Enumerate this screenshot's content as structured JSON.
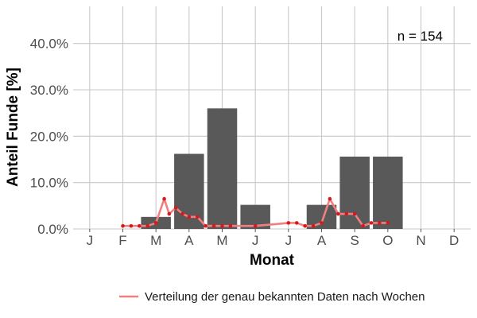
{
  "chart_data": {
    "type": "bar",
    "xlabel": "Monat",
    "ylabel": "Anteil Funde [%]",
    "categories": [
      "J",
      "F",
      "M",
      "A",
      "M",
      "J",
      "J",
      "A",
      "S",
      "O",
      "N",
      "D"
    ],
    "values": [
      0,
      0,
      2.6,
      16.2,
      26.0,
      5.2,
      0,
      5.2,
      15.6,
      15.6,
      0,
      0
    ],
    "y_ticks": [
      "0.0%",
      "10.0%",
      "20.0%",
      "30.0%",
      "40.0%"
    ],
    "y_tick_values": [
      0,
      10,
      20,
      30,
      40
    ],
    "ylim": [
      0,
      48
    ],
    "annotation": "n = 154",
    "bar_color": "#595959",
    "line_color": "#f08080",
    "point_color": "#d7191c",
    "grid": true,
    "legend_position": "bottom",
    "line_series": {
      "name": "Verteilung der genau bekannten Daten nach Wochen",
      "x": [
        2.0,
        2.25,
        2.5,
        2.75,
        3.0,
        3.25,
        3.4,
        3.6,
        3.8,
        4.0,
        4.25,
        4.5,
        4.75,
        5.0,
        5.25,
        6.0,
        7.0,
        7.25,
        7.5,
        7.75,
        8.0,
        8.25,
        8.5,
        8.75,
        9.0,
        9.25,
        9.5,
        9.75,
        10.0
      ],
      "y": [
        0.65,
        0.65,
        0.65,
        0.65,
        1.3,
        6.5,
        3.25,
        4.55,
        3.25,
        2.6,
        2.6,
        0.65,
        0.65,
        0.65,
        0.65,
        0.65,
        1.3,
        1.3,
        0.65,
        0.65,
        1.3,
        6.5,
        3.25,
        3.25,
        3.25,
        0.65,
        1.3,
        1.3,
        1.3
      ]
    }
  }
}
